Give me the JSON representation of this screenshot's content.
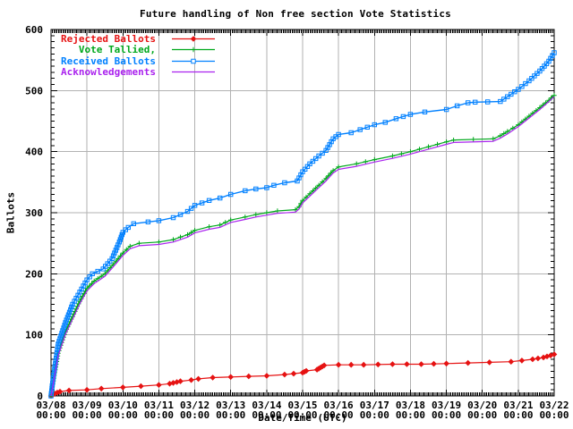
{
  "chart_data": {
    "type": "line",
    "title": "Future handling of Non free section Vote Statistics",
    "xlabel": "Date/Time (UTC)",
    "ylabel": "Ballots",
    "ylim": [
      0,
      600
    ],
    "y_ticks": [
      0,
      100,
      200,
      300,
      400,
      500,
      600
    ],
    "xlim_days": [
      0,
      14
    ],
    "x_dates": [
      "03/08",
      "03/09",
      "03/10",
      "03/11",
      "03/12",
      "03/13",
      "03/14",
      "03/15",
      "03/16",
      "03/17",
      "03/18",
      "03/19",
      "03/20",
      "03/21",
      "03/22"
    ],
    "x_time_label": "00:00",
    "grid": true,
    "legend_position": "top-left",
    "grid_color": "#b2b2b2",
    "axis_color": "#000000",
    "series": [
      {
        "name": "Rejected Ballots",
        "color": "#e61212",
        "marker": "diamond",
        "points": [
          [
            0,
            0
          ],
          [
            0.1,
            4
          ],
          [
            0.25,
            7
          ],
          [
            0.5,
            9
          ],
          [
            1.0,
            10
          ],
          [
            1.4,
            12
          ],
          [
            2.0,
            14
          ],
          [
            2.5,
            16
          ],
          [
            3.0,
            18
          ],
          [
            3.3,
            20
          ],
          [
            3.6,
            24
          ],
          [
            3.9,
            26
          ],
          [
            4.1,
            28
          ],
          [
            4.5,
            30
          ],
          [
            5.0,
            31
          ],
          [
            5.5,
            32
          ],
          [
            6.0,
            33
          ],
          [
            6.5,
            35
          ],
          [
            7.0,
            38
          ],
          [
            7.1,
            41
          ],
          [
            7.4,
            43
          ],
          [
            7.6,
            50
          ],
          [
            8.0,
            51
          ],
          [
            8.7,
            51
          ],
          [
            9.5,
            52
          ],
          [
            10.3,
            52
          ],
          [
            11.0,
            53
          ],
          [
            11.6,
            54
          ],
          [
            12.2,
            55
          ],
          [
            12.8,
            56
          ],
          [
            13.1,
            58
          ],
          [
            13.4,
            60
          ],
          [
            13.7,
            63
          ],
          [
            14.0,
            68
          ]
        ]
      },
      {
        "name": "Vote Tallied,",
        "color": "#00a81c",
        "marker": "plus",
        "points": [
          [
            0,
            0
          ],
          [
            0.05,
            20
          ],
          [
            0.2,
            70
          ],
          [
            0.4,
            105
          ],
          [
            0.6,
            130
          ],
          [
            0.8,
            155
          ],
          [
            1.0,
            176
          ],
          [
            1.2,
            188
          ],
          [
            1.5,
            200
          ],
          [
            1.8,
            220
          ],
          [
            2.0,
            234
          ],
          [
            2.2,
            245
          ],
          [
            2.45,
            250
          ],
          [
            3.0,
            252
          ],
          [
            3.4,
            256
          ],
          [
            3.8,
            264
          ],
          [
            4.0,
            271
          ],
          [
            4.4,
            277
          ],
          [
            4.7,
            280
          ],
          [
            5.0,
            288
          ],
          [
            5.4,
            293
          ],
          [
            5.7,
            297
          ],
          [
            6.0,
            300
          ],
          [
            6.3,
            303
          ],
          [
            6.8,
            305
          ],
          [
            6.9,
            310
          ],
          [
            7.0,
            320
          ],
          [
            7.2,
            331
          ],
          [
            7.45,
            345
          ],
          [
            7.65,
            356
          ],
          [
            7.85,
            369
          ],
          [
            8.0,
            375
          ],
          [
            8.5,
            380
          ],
          [
            9.0,
            387
          ],
          [
            9.5,
            393
          ],
          [
            10.0,
            400
          ],
          [
            10.5,
            408
          ],
          [
            11.0,
            416
          ],
          [
            11.2,
            419
          ],
          [
            12.3,
            421
          ],
          [
            12.5,
            426
          ],
          [
            12.7,
            433
          ],
          [
            13.0,
            444
          ],
          [
            13.3,
            458
          ],
          [
            13.6,
            472
          ],
          [
            13.85,
            484
          ],
          [
            14.0,
            492
          ]
        ]
      },
      {
        "name": "Received Ballots",
        "color": "#0080ff",
        "marker": "square",
        "points": [
          [
            0,
            0
          ],
          [
            0.05,
            25
          ],
          [
            0.2,
            85
          ],
          [
            0.4,
            120
          ],
          [
            0.6,
            150
          ],
          [
            0.8,
            170
          ],
          [
            1.0,
            190
          ],
          [
            1.15,
            200
          ],
          [
            1.45,
            208
          ],
          [
            1.7,
            225
          ],
          [
            1.9,
            252
          ],
          [
            2.0,
            268
          ],
          [
            2.15,
            276
          ],
          [
            2.3,
            282
          ],
          [
            2.7,
            285
          ],
          [
            3.0,
            287
          ],
          [
            3.4,
            292
          ],
          [
            3.8,
            302
          ],
          [
            4.0,
            312
          ],
          [
            4.4,
            320
          ],
          [
            4.7,
            324
          ],
          [
            5.0,
            330
          ],
          [
            5.4,
            336
          ],
          [
            5.7,
            339
          ],
          [
            6.0,
            341
          ],
          [
            6.2,
            345
          ],
          [
            6.5,
            349
          ],
          [
            6.85,
            352
          ],
          [
            7.0,
            367
          ],
          [
            7.2,
            380
          ],
          [
            7.45,
            393
          ],
          [
            7.65,
            402
          ],
          [
            7.85,
            421
          ],
          [
            8.0,
            428
          ],
          [
            8.35,
            431
          ],
          [
            8.6,
            436
          ],
          [
            9.0,
            444
          ],
          [
            9.3,
            448
          ],
          [
            9.6,
            454
          ],
          [
            10.0,
            461
          ],
          [
            10.4,
            465
          ],
          [
            11.0,
            469
          ],
          [
            11.3,
            475
          ],
          [
            11.6,
            480
          ],
          [
            11.8,
            481
          ],
          [
            12.5,
            482
          ],
          [
            12.7,
            490
          ],
          [
            13.0,
            502
          ],
          [
            13.3,
            516
          ],
          [
            13.6,
            532
          ],
          [
            13.85,
            548
          ],
          [
            14.0,
            562
          ]
        ]
      },
      {
        "name": "Acknowledgements",
        "color": "#aa22ee",
        "marker": "none",
        "points": [
          [
            0,
            0
          ],
          [
            0.05,
            16
          ],
          [
            0.2,
            66
          ],
          [
            0.4,
            101
          ],
          [
            0.6,
            126
          ],
          [
            0.8,
            151
          ],
          [
            1.0,
            172
          ],
          [
            1.2,
            184
          ],
          [
            1.5,
            196
          ],
          [
            1.8,
            216
          ],
          [
            2.0,
            230
          ],
          [
            2.2,
            241
          ],
          [
            2.45,
            246
          ],
          [
            3.0,
            248
          ],
          [
            3.4,
            252
          ],
          [
            3.8,
            260
          ],
          [
            4.0,
            267
          ],
          [
            4.4,
            273
          ],
          [
            4.7,
            276
          ],
          [
            5.0,
            284
          ],
          [
            5.4,
            289
          ],
          [
            5.7,
            293
          ],
          [
            6.0,
            296
          ],
          [
            6.3,
            299
          ],
          [
            6.8,
            301
          ],
          [
            6.9,
            306
          ],
          [
            7.0,
            316
          ],
          [
            7.2,
            327
          ],
          [
            7.45,
            341
          ],
          [
            7.65,
            352
          ],
          [
            7.85,
            365
          ],
          [
            8.0,
            371
          ],
          [
            8.5,
            376
          ],
          [
            9.0,
            383
          ],
          [
            9.5,
            389
          ],
          [
            10.0,
            396
          ],
          [
            10.5,
            404
          ],
          [
            11.0,
            412
          ],
          [
            11.2,
            415
          ],
          [
            12.3,
            417
          ],
          [
            12.5,
            422
          ],
          [
            12.7,
            429
          ],
          [
            13.0,
            441
          ],
          [
            13.3,
            455
          ],
          [
            13.6,
            469
          ],
          [
            13.85,
            482
          ],
          [
            14.0,
            490
          ]
        ]
      }
    ]
  }
}
